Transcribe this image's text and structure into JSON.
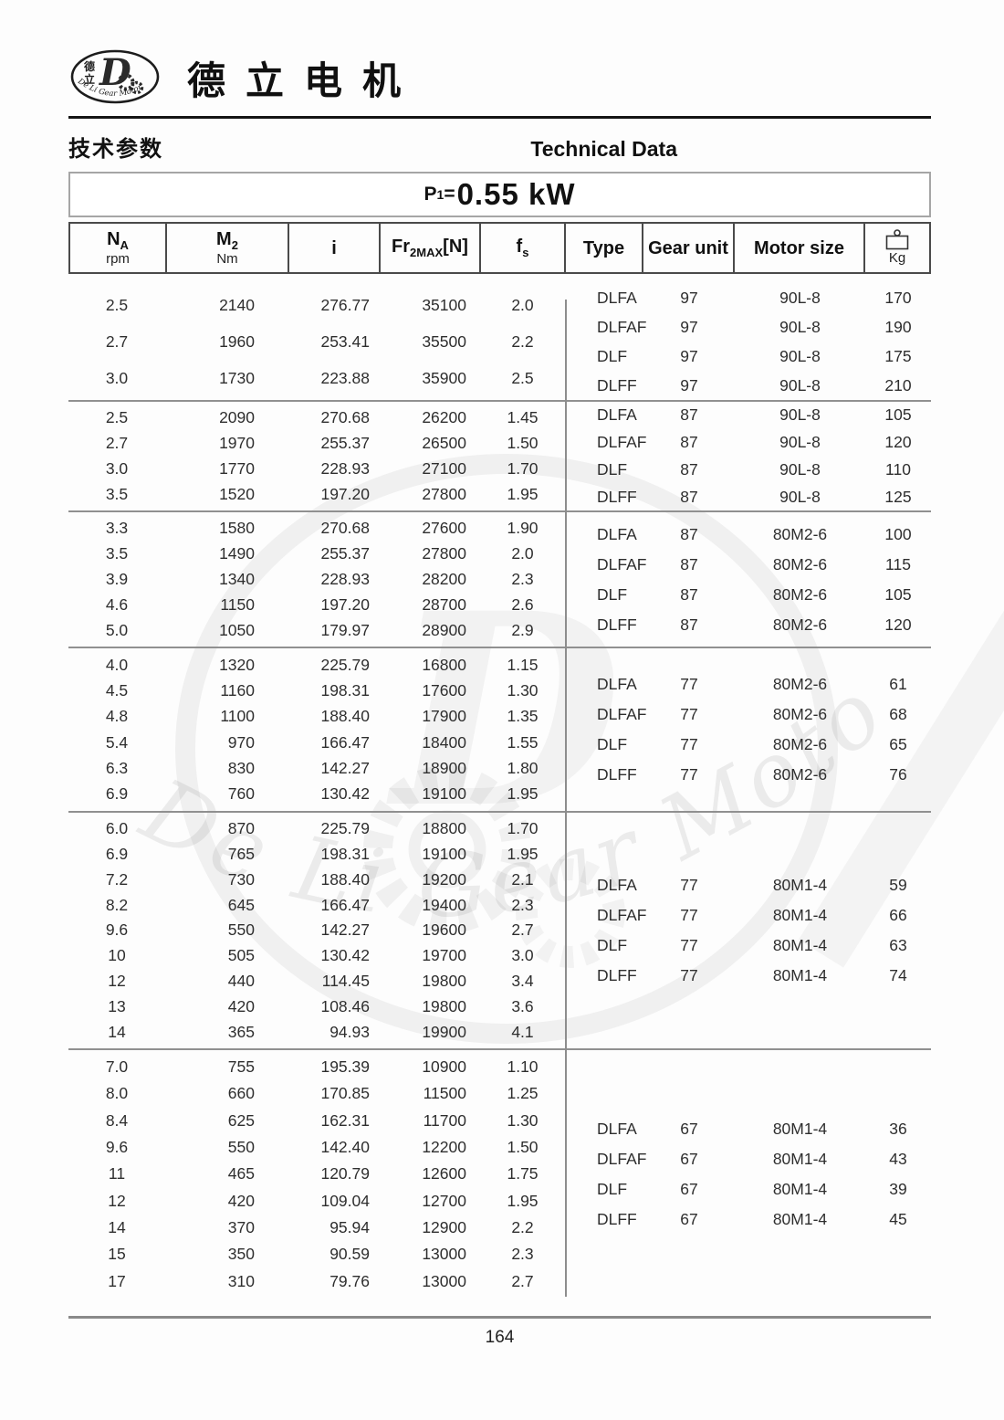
{
  "header": {
    "logo": {
      "cn_top": "德",
      "cn_bottom": "立",
      "monogram": "D",
      "arc": "De Li Gear Motor"
    },
    "brand": "德立电机",
    "section_cn": "技术参数",
    "section_en": "Technical Data"
  },
  "title": {
    "p": "P",
    "sub": "1",
    "eq": "=",
    "value": "0.55 kW"
  },
  "table": {
    "columns": [
      {
        "main": "N",
        "sub": "A",
        "unit": "rpm"
      },
      {
        "main": "M",
        "sub": "2",
        "unit": "Nm"
      },
      {
        "main": "i"
      },
      {
        "main": "Fr",
        "sub": "2MAX",
        "suffix": "[N]"
      },
      {
        "main": "f",
        "sub": "s"
      },
      {
        "main": "Type"
      },
      {
        "main": "Gear unit"
      },
      {
        "main": "Motor size"
      },
      {
        "main": "Kg",
        "icon": "weight-icon"
      }
    ],
    "groups": [
      {
        "rows": [
          [
            "2.5",
            "2140",
            "276.77",
            "35100",
            "2.0"
          ],
          [
            "2.7",
            "1960",
            "253.41",
            "35500",
            "2.2"
          ],
          [
            "3.0",
            "1730",
            "223.88",
            "35900",
            "2.5"
          ]
        ],
        "types": [
          [
            "DLFA",
            "97",
            "90L-8",
            "170"
          ],
          [
            "DLFAF",
            "97",
            "90L-8",
            "190"
          ],
          [
            "DLF",
            "97",
            "90L-8",
            "175"
          ],
          [
            "DLFF",
            "97",
            "90L-8",
            "210"
          ]
        ]
      },
      {
        "rows": [
          [
            "2.5",
            "2090",
            "270.68",
            "26200",
            "1.45"
          ],
          [
            "2.7",
            "1970",
            "255.37",
            "26500",
            "1.50"
          ],
          [
            "3.0",
            "1770",
            "228.93",
            "27100",
            "1.70"
          ],
          [
            "3.5",
            "1520",
            "197.20",
            "27800",
            "1.95"
          ]
        ],
        "types": [
          [
            "DLFA",
            "87",
            "90L-8",
            "105"
          ],
          [
            "DLFAF",
            "87",
            "90L-8",
            "120"
          ],
          [
            "DLF",
            "87",
            "90L-8",
            "110"
          ],
          [
            "DLFF",
            "87",
            "90L-8",
            "125"
          ]
        ]
      },
      {
        "rows": [
          [
            "3.3",
            "1580",
            "270.68",
            "27600",
            "1.90"
          ],
          [
            "3.5",
            "1490",
            "255.37",
            "27800",
            "2.0"
          ],
          [
            "3.9",
            "1340",
            "228.93",
            "28200",
            "2.3"
          ],
          [
            "4.6",
            "1150",
            "197.20",
            "28700",
            "2.6"
          ],
          [
            "5.0",
            "1050",
            "179.97",
            "28900",
            "2.9"
          ]
        ],
        "types": [
          [
            "DLFA",
            "87",
            "80M2-6",
            "100"
          ],
          [
            "DLFAF",
            "87",
            "80M2-6",
            "115"
          ],
          [
            "DLF",
            "87",
            "80M2-6",
            "105"
          ],
          [
            "DLFF",
            "87",
            "80M2-6",
            "120"
          ]
        ]
      },
      {
        "rows": [
          [
            "4.0",
            "1320",
            "225.79",
            "16800",
            "1.15"
          ],
          [
            "4.5",
            "1160",
            "198.31",
            "17600",
            "1.30"
          ],
          [
            "4.8",
            "1100",
            "188.40",
            "17900",
            "1.35"
          ],
          [
            "5.4",
            "970",
            "166.47",
            "18400",
            "1.55"
          ],
          [
            "6.3",
            "830",
            "142.27",
            "18900",
            "1.80"
          ],
          [
            "6.9",
            "760",
            "130.42",
            "19100",
            "1.95"
          ]
        ],
        "types": [
          [
            "DLFA",
            "77",
            "80M2-6",
            "61"
          ],
          [
            "DLFAF",
            "77",
            "80M2-6",
            "68"
          ],
          [
            "DLF",
            "77",
            "80M2-6",
            "65"
          ],
          [
            "DLFF",
            "77",
            "80M2-6",
            "76"
          ]
        ]
      },
      {
        "rows": [
          [
            "6.0",
            "870",
            "225.79",
            "18800",
            "1.70"
          ],
          [
            "6.9",
            "765",
            "198.31",
            "19100",
            "1.95"
          ],
          [
            "7.2",
            "730",
            "188.40",
            "19200",
            "2.1"
          ],
          [
            "8.2",
            "645",
            "166.47",
            "19400",
            "2.3"
          ],
          [
            "9.6",
            "550",
            "142.27",
            "19600",
            "2.7"
          ],
          [
            "10",
            "505",
            "130.42",
            "19700",
            "3.0"
          ],
          [
            "12",
            "440",
            "114.45",
            "19800",
            "3.4"
          ],
          [
            "13",
            "420",
            "108.46",
            "19800",
            "3.6"
          ],
          [
            "14",
            "365",
            "94.93",
            "19900",
            "4.1"
          ]
        ],
        "types": [
          [
            "DLFA",
            "77",
            "80M1-4",
            "59"
          ],
          [
            "DLFAF",
            "77",
            "80M1-4",
            "66"
          ],
          [
            "DLF",
            "77",
            "80M1-4",
            "63"
          ],
          [
            "DLFF",
            "77",
            "80M1-4",
            "74"
          ]
        ]
      },
      {
        "rows": [
          [
            "7.0",
            "755",
            "195.39",
            "10900",
            "1.10"
          ],
          [
            "8.0",
            "660",
            "170.85",
            "11500",
            "1.25"
          ],
          [
            "8.4",
            "625",
            "162.31",
            "11700",
            "1.30"
          ],
          [
            "9.6",
            "550",
            "142.40",
            "12200",
            "1.50"
          ],
          [
            "11",
            "465",
            "120.79",
            "12600",
            "1.75"
          ],
          [
            "12",
            "420",
            "109.04",
            "12700",
            "1.95"
          ],
          [
            "14",
            "370",
            "95.94",
            "12900",
            "2.2"
          ],
          [
            "15",
            "350",
            "90.59",
            "13000",
            "2.3"
          ],
          [
            "17",
            "310",
            "79.76",
            "13000",
            "2.7"
          ]
        ],
        "types": [
          [
            "DLFA",
            "67",
            "80M1-4",
            "36"
          ],
          [
            "DLFAF",
            "67",
            "80M1-4",
            "43"
          ],
          [
            "DLF",
            "67",
            "80M1-4",
            "39"
          ],
          [
            "DLFF",
            "67",
            "80M1-4",
            "45"
          ]
        ]
      }
    ]
  },
  "watermark": {
    "text": "De Li Gear Motor"
  },
  "footer": {
    "page": "164"
  }
}
